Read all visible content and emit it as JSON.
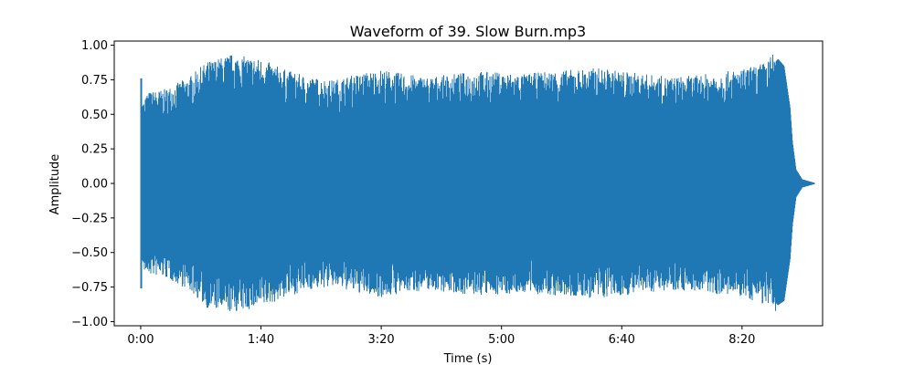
{
  "chart_data": {
    "type": "area",
    "title": "Waveform of 39. Slow Burn.mp3",
    "xlabel": "Time (s)",
    "ylabel": "Amplitude",
    "xlim": [
      -22,
      567
    ],
    "ylim": [
      -1.03,
      1.03
    ],
    "xticks": [
      {
        "value": 0,
        "label": "0:00"
      },
      {
        "value": 100,
        "label": "1:40"
      },
      {
        "value": 200,
        "label": "3:20"
      },
      {
        "value": 300,
        "label": "5:00"
      },
      {
        "value": 400,
        "label": "6:40"
      },
      {
        "value": 500,
        "label": "8:20"
      }
    ],
    "yticks": [
      {
        "value": 1.0,
        "label": "1.00"
      },
      {
        "value": 0.75,
        "label": "0.75"
      },
      {
        "value": 0.5,
        "label": "0.50"
      },
      {
        "value": 0.25,
        "label": "0.25"
      },
      {
        "value": 0.0,
        "label": "0.00"
      },
      {
        "value": -0.25,
        "label": "−0.25"
      },
      {
        "value": -0.5,
        "label": "−0.50"
      },
      {
        "value": -0.75,
        "label": "−0.75"
      },
      {
        "value": -1.0,
        "label": "−1.00"
      }
    ],
    "grid": false,
    "series": [
      {
        "color": "#1f77b4",
        "envelope": {
          "t": [
            0,
            1,
            5,
            20,
            40,
            55,
            75,
            100,
            120,
            140,
            160,
            180,
            200,
            220,
            240,
            260,
            280,
            300,
            320,
            340,
            360,
            380,
            400,
            420,
            440,
            460,
            480,
            500,
            520,
            530,
            535,
            540,
            542,
            545,
            550,
            560
          ],
          "upper": [
            0.76,
            0.55,
            0.6,
            0.62,
            0.7,
            0.8,
            0.85,
            0.82,
            0.75,
            0.7,
            0.68,
            0.72,
            0.75,
            0.72,
            0.7,
            0.72,
            0.74,
            0.73,
            0.72,
            0.74,
            0.75,
            0.76,
            0.74,
            0.72,
            0.7,
            0.71,
            0.73,
            0.75,
            0.8,
            0.9,
            0.85,
            0.55,
            0.3,
            0.1,
            0.03,
            0.005
          ],
          "lower": [
            -0.76,
            -0.55,
            -0.6,
            -0.62,
            -0.7,
            -0.82,
            -0.85,
            -0.82,
            -0.75,
            -0.7,
            -0.68,
            -0.72,
            -0.75,
            -0.72,
            -0.7,
            -0.72,
            -0.74,
            -0.73,
            -0.72,
            -0.74,
            -0.75,
            -0.76,
            -0.74,
            -0.72,
            -0.7,
            -0.71,
            -0.73,
            -0.75,
            -0.8,
            -0.88,
            -0.85,
            -0.55,
            -0.3,
            -0.1,
            -0.03,
            -0.005
          ]
        }
      }
    ]
  }
}
